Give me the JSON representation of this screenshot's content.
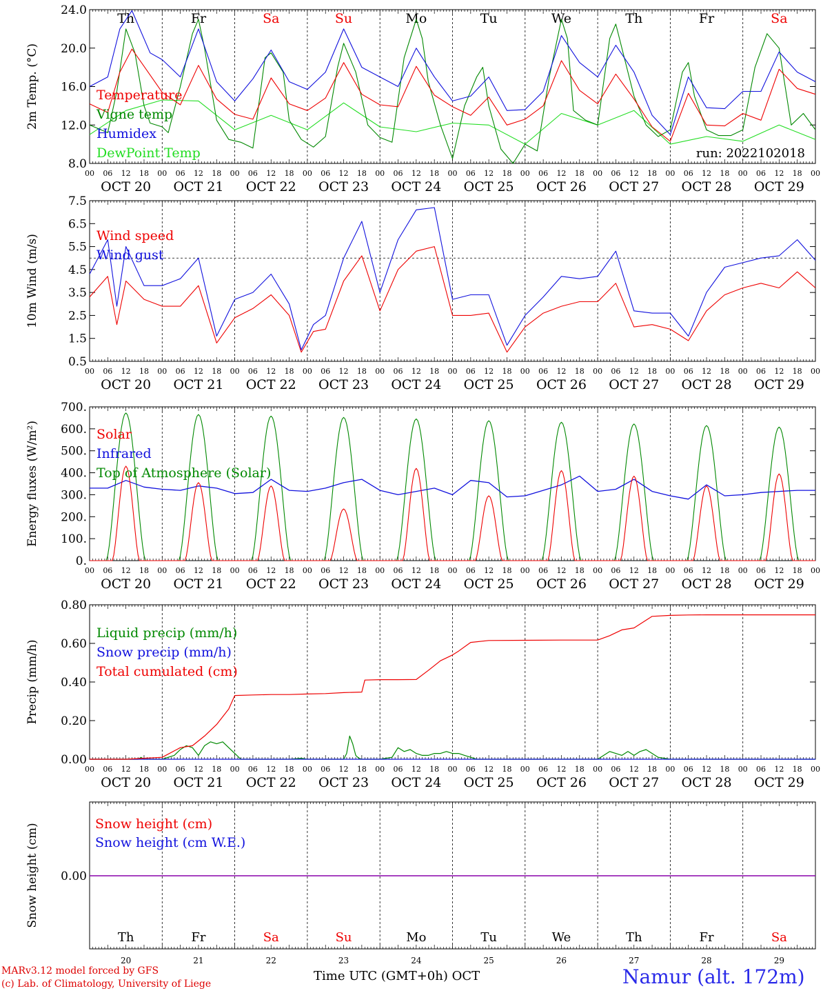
{
  "run_label": "run: 2022102018",
  "footer": {
    "credit_line1": "MARv3.12 model forced by GFS",
    "credit_line2": "(c) Lab. of Climatology, University of Liege",
    "x_title": "Time UTC (GMT+0h) OCT",
    "station": "Namur (alt. 172m)"
  },
  "days": {
    "weekdays": [
      "Th",
      "Fr",
      "Sa",
      "Su",
      "Mo",
      "Tu",
      "We",
      "Th",
      "Fr",
      "Sa"
    ],
    "weekend_flags": [
      false,
      false,
      true,
      true,
      false,
      false,
      false,
      false,
      false,
      true
    ],
    "date_labels": [
      "OCT 20",
      "OCT 21",
      "OCT 22",
      "OCT 23",
      "OCT 24",
      "OCT 25",
      "OCT 26",
      "OCT 27",
      "OCT 28",
      "OCT 29"
    ],
    "day_numbers": [
      "20",
      "21",
      "22",
      "23",
      "24",
      "25",
      "26",
      "27",
      "28",
      "29"
    ],
    "hour_ticks": [
      "00",
      "06",
      "12",
      "18"
    ],
    "end_tick": "00"
  },
  "colors": {
    "red": "#ee0000",
    "blue": "#1010dd",
    "green": "#008800",
    "light_green": "#22dd22",
    "purple": "#8800aa",
    "weekend": "#ee0000"
  },
  "chart_data": [
    {
      "type": "line",
      "ylabel": "2m Temp. (°C)",
      "ylim": [
        8.0,
        24.0
      ],
      "yticks": [
        "8.0",
        "12.0",
        "16.0",
        "20.0",
        "24.0"
      ],
      "x_unit": "hours since OCT 20 00 UTC",
      "series": [
        {
          "name": "Temperature",
          "color": "red",
          "x": [
            0,
            6,
            10,
            14,
            20,
            24,
            30,
            36,
            42,
            48,
            54,
            60,
            66,
            72,
            78,
            84,
            90,
            96,
            102,
            108,
            114,
            120,
            126,
            132,
            138,
            144,
            150,
            156,
            162,
            168,
            174,
            180,
            186,
            192,
            198,
            204,
            210,
            216,
            222,
            228,
            234,
            240
          ],
          "y": [
            14.2,
            13.3,
            17.5,
            19.9,
            17.2,
            15.4,
            14.1,
            18.2,
            14.7,
            13.1,
            12.6,
            16.9,
            14.2,
            13.5,
            14.8,
            18.5,
            15.2,
            14.1,
            13.9,
            18.1,
            15.1,
            13.9,
            13.0,
            14.9,
            12.0,
            12.6,
            14.0,
            18.7,
            15.6,
            14.2,
            17.3,
            14.7,
            11.8,
            10.3,
            15.3,
            12.0,
            11.9,
            13.2,
            12.5,
            17.8,
            15.8,
            15.2
          ]
        },
        {
          "name": "Vigne temp",
          "color": "green",
          "x": [
            0,
            6,
            9,
            12,
            15,
            18,
            20,
            24,
            26,
            30,
            34,
            36,
            38,
            42,
            46,
            50,
            54,
            58,
            60,
            64,
            66,
            70,
            74,
            78,
            82,
            84,
            88,
            92,
            96,
            100,
            104,
            108,
            110,
            112,
            116,
            120,
            124,
            128,
            130,
            132,
            136,
            140,
            144,
            148,
            152,
            156,
            158,
            160,
            164,
            168,
            172,
            174,
            176,
            180,
            184,
            188,
            192,
            196,
            198,
            200,
            204,
            208,
            212,
            216,
            220,
            224,
            228,
            232,
            236,
            240
          ],
          "y": [
            12.0,
            11.2,
            15.5,
            22.0,
            19.5,
            14.0,
            12.2,
            11.8,
            11.2,
            16.0,
            21.5,
            23.0,
            20.0,
            12.5,
            10.5,
            10.2,
            9.6,
            19.0,
            19.5,
            17.5,
            12.5,
            10.5,
            9.7,
            10.8,
            18.0,
            20.5,
            17.5,
            12.0,
            10.7,
            10.2,
            19.0,
            23.0,
            21.0,
            16.5,
            12.0,
            8.5,
            14.0,
            17.0,
            18.0,
            14.0,
            9.5,
            8.0,
            10.0,
            9.3,
            17.0,
            23.0,
            21.0,
            13.5,
            12.5,
            12.0,
            21.0,
            22.5,
            20.0,
            15.0,
            12.0,
            10.8,
            11.5,
            17.5,
            18.5,
            15.0,
            11.5,
            10.9,
            10.9,
            11.5,
            18.0,
            21.5,
            20.0,
            12.0,
            13.2,
            11.5
          ]
        },
        {
          "name": "Humidex",
          "color": "blue",
          "x": [
            0,
            6,
            10,
            14,
            20,
            24,
            30,
            36,
            42,
            48,
            54,
            60,
            66,
            72,
            78,
            84,
            90,
            96,
            102,
            108,
            114,
            120,
            126,
            132,
            138,
            144,
            150,
            156,
            162,
            168,
            174,
            180,
            186,
            192,
            198,
            204,
            210,
            216,
            222,
            228,
            234,
            240
          ],
          "y": [
            16.0,
            17.0,
            22.0,
            23.9,
            19.5,
            18.8,
            17.0,
            22.0,
            16.5,
            14.5,
            16.8,
            19.8,
            16.5,
            15.7,
            17.5,
            22.0,
            18.0,
            17.0,
            16.0,
            20.0,
            17.0,
            14.5,
            15.0,
            17.0,
            13.5,
            13.6,
            15.5,
            21.3,
            18.5,
            17.0,
            20.3,
            17.5,
            13.0,
            11.0,
            17.0,
            13.8,
            13.7,
            15.5,
            15.5,
            19.6,
            17.5,
            16.5
          ]
        },
        {
          "name": "DewPoint Temp",
          "color": "light_green",
          "x": [
            0,
            12,
            24,
            36,
            48,
            60,
            72,
            84,
            96,
            108,
            120,
            132,
            144,
            156,
            168,
            180,
            192,
            204,
            216,
            228,
            240
          ],
          "y": [
            11.0,
            13.5,
            14.6,
            14.5,
            11.5,
            13.0,
            11.5,
            14.3,
            11.8,
            11.3,
            12.2,
            12.0,
            10.0,
            13.2,
            12.0,
            13.5,
            10.0,
            10.8,
            10.3,
            12.0,
            10.5
          ]
        }
      ]
    },
    {
      "type": "line",
      "ylabel": "10m Wind (m/s)",
      "ylim": [
        0.5,
        7.5
      ],
      "yticks": [
        "0.5",
        "1.5",
        "2.5",
        "3.5",
        "4.5",
        "5.5",
        "6.5",
        "7.5"
      ],
      "x_unit": "hours since OCT 20 00 UTC",
      "series": [
        {
          "name": "Wind speed",
          "color": "red",
          "x": [
            0,
            6,
            9,
            12,
            18,
            24,
            30,
            36,
            42,
            48,
            54,
            60,
            66,
            70,
            74,
            78,
            84,
            90,
            96,
            102,
            108,
            114,
            120,
            126,
            132,
            138,
            144,
            150,
            156,
            162,
            168,
            174,
            180,
            186,
            192,
            198,
            204,
            210,
            216,
            222,
            228,
            234,
            240
          ],
          "y": [
            3.3,
            4.2,
            2.1,
            4.0,
            3.2,
            2.9,
            2.9,
            3.8,
            1.3,
            2.4,
            2.8,
            3.4,
            2.5,
            0.9,
            1.8,
            1.9,
            4.0,
            5.1,
            2.7,
            4.5,
            5.3,
            5.5,
            2.5,
            2.5,
            2.6,
            0.9,
            2.0,
            2.6,
            2.9,
            3.1,
            3.1,
            3.9,
            2.0,
            2.1,
            1.9,
            1.4,
            2.7,
            3.4,
            3.7,
            3.9,
            3.7,
            4.4,
            3.7
          ]
        },
        {
          "name": "Wind gust",
          "color": "blue",
          "x": [
            0,
            6,
            9,
            12,
            18,
            24,
            30,
            36,
            42,
            48,
            54,
            60,
            66,
            70,
            74,
            78,
            84,
            90,
            96,
            102,
            108,
            114,
            120,
            126,
            132,
            138,
            144,
            150,
            156,
            162,
            168,
            174,
            180,
            186,
            192,
            198,
            204,
            210,
            216,
            222,
            228,
            234,
            240
          ],
          "y": [
            4.3,
            5.8,
            2.9,
            5.5,
            3.8,
            3.8,
            4.1,
            5.0,
            1.6,
            3.2,
            3.5,
            4.3,
            3.0,
            1.0,
            2.1,
            2.5,
            5.0,
            6.6,
            3.5,
            5.8,
            7.1,
            7.2,
            3.2,
            3.4,
            3.4,
            1.2,
            2.5,
            3.3,
            4.2,
            4.1,
            4.2,
            5.3,
            2.7,
            2.6,
            2.6,
            1.6,
            3.5,
            4.6,
            4.8,
            5.0,
            5.1,
            5.8,
            4.9
          ]
        }
      ],
      "reference_line": 5.0
    },
    {
      "type": "line",
      "ylabel": "Energy fluxes (W/m²)",
      "ylim": [
        0,
        700
      ],
      "yticks": [
        "0.",
        "100.",
        "200.",
        "300.",
        "400.",
        "500.",
        "600.",
        "700."
      ],
      "x_unit": "hours since OCT 20 00 UTC",
      "series": [
        {
          "name": "Solar",
          "color": "red",
          "peaks": [
            430,
            355,
            340,
            235,
            420,
            295,
            410,
            385,
            340,
            395
          ]
        },
        {
          "name": "Infrared",
          "color": "blue",
          "x": [
            0,
            6,
            12,
            18,
            24,
            30,
            36,
            42,
            48,
            54,
            60,
            66,
            72,
            78,
            84,
            90,
            96,
            102,
            108,
            114,
            120,
            126,
            132,
            138,
            144,
            150,
            156,
            162,
            168,
            174,
            180,
            186,
            192,
            198,
            204,
            210,
            216,
            222,
            228,
            234,
            240
          ],
          "y": [
            330,
            330,
            365,
            335,
            325,
            320,
            340,
            330,
            305,
            310,
            370,
            320,
            315,
            330,
            355,
            370,
            320,
            300,
            315,
            330,
            300,
            365,
            355,
            290,
            295,
            320,
            345,
            385,
            315,
            325,
            370,
            315,
            295,
            280,
            345,
            295,
            300,
            310,
            315,
            320,
            320
          ]
        },
        {
          "name": "Top of Atmosphere (Solar)",
          "color": "green",
          "peaks": [
            672,
            665,
            658,
            652,
            645,
            637,
            630,
            622,
            615,
            608
          ]
        }
      ]
    },
    {
      "type": "line",
      "ylabel": "Precip (mm/h)",
      "ylim": [
        0.0,
        0.8
      ],
      "yticks": [
        "0.00",
        "0.20",
        "0.40",
        "0.60",
        "0.80"
      ],
      "x_unit": "hours since OCT 20 00 UTC",
      "series": [
        {
          "name": "Liquid precip (mm/h)",
          "color": "green",
          "x": [
            0,
            16,
            17,
            18,
            24,
            28,
            30,
            32,
            34,
            36,
            38,
            40,
            42,
            44,
            46,
            48,
            50,
            66,
            70,
            72,
            84,
            85,
            86,
            87,
            88,
            89,
            90,
            96,
            100,
            102,
            104,
            106,
            108,
            110,
            112,
            114,
            116,
            118,
            120,
            122,
            124,
            126,
            128,
            132,
            144,
            150,
            168,
            172,
            174,
            176,
            178,
            180,
            182,
            184,
            186,
            188,
            192,
            240
          ],
          "y": [
            0,
            0,
            0.01,
            0,
            0,
            0.02,
            0.05,
            0.07,
            0.06,
            0.02,
            0.07,
            0.09,
            0.08,
            0.09,
            0.06,
            0.03,
            0,
            0,
            0.005,
            0,
            0,
            0.03,
            0.12,
            0.08,
            0.02,
            0.005,
            0,
            0,
            0.01,
            0.06,
            0.04,
            0.05,
            0.03,
            0.02,
            0.02,
            0.03,
            0.03,
            0.04,
            0.03,
            0.03,
            0.02,
            0.01,
            0,
            0,
            0,
            0,
            0,
            0.04,
            0.03,
            0.02,
            0.04,
            0.02,
            0.04,
            0.05,
            0.03,
            0.01,
            0,
            0
          ]
        },
        {
          "name": "Snow precip (mm/h)",
          "color": "blue",
          "x": [
            0,
            240
          ],
          "y": [
            0,
            0
          ]
        },
        {
          "name": "Total cumulated (cm)",
          "color": "red",
          "x": [
            0,
            12,
            18,
            24,
            30,
            34,
            38,
            42,
            46,
            48,
            54,
            60,
            66,
            72,
            78,
            84,
            90,
            91,
            96,
            102,
            108,
            112,
            116,
            120,
            122,
            126,
            132,
            144,
            156,
            168,
            172,
            176,
            180,
            184,
            186,
            192,
            198,
            204,
            216,
            228,
            240
          ],
          "y": [
            0,
            0,
            0.005,
            0.01,
            0.06,
            0.07,
            0.12,
            0.18,
            0.26,
            0.33,
            0.333,
            0.335,
            0.335,
            0.338,
            0.34,
            0.345,
            0.348,
            0.41,
            0.412,
            0.412,
            0.413,
            0.46,
            0.51,
            0.54,
            0.56,
            0.605,
            0.615,
            0.616,
            0.617,
            0.617,
            0.64,
            0.67,
            0.68,
            0.72,
            0.74,
            0.745,
            0.747,
            0.748,
            0.748,
            0.748,
            0.748
          ]
        }
      ]
    },
    {
      "type": "line",
      "ylabel": "Snow height (cm)",
      "yticks": [
        "0.00"
      ],
      "x_unit": "hours since OCT 20 00 UTC",
      "series": [
        {
          "name": "Snow height (cm)",
          "color": "red",
          "x": [
            0,
            240
          ],
          "y": [
            0,
            0
          ]
        },
        {
          "name": "Snow height (cm W.E.)",
          "color": "blue",
          "x": [
            0,
            240
          ],
          "y": [
            0,
            0
          ]
        }
      ]
    }
  ]
}
